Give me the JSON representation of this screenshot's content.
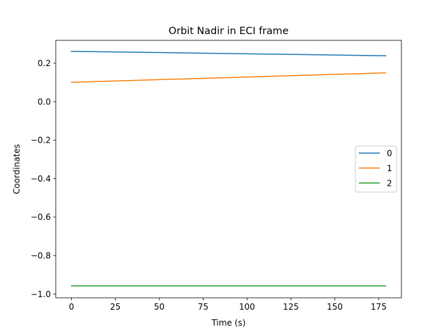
{
  "chart_data": {
    "type": "line",
    "title": "Orbit Nadir in ECI frame",
    "xlabel": "Time (s)",
    "ylabel": "Coordinates",
    "xlim": [
      -8.95,
      187.95
    ],
    "ylim": [
      -1.02,
      0.319
    ],
    "xticks": [
      0,
      25,
      50,
      75,
      100,
      125,
      150,
      175
    ],
    "xtick_labels": [
      "0",
      "25",
      "50",
      "75",
      "100",
      "125",
      "150",
      "175"
    ],
    "yticks": [
      0.2,
      0.0,
      -0.2,
      -0.4,
      -0.6,
      -0.8,
      -1.0
    ],
    "ytick_labels": [
      "0.2",
      "0.0",
      "−0.2",
      "−0.4",
      "−0.6",
      "−0.8",
      "−1.0"
    ],
    "grid": false,
    "legend_position": "center-right",
    "series": [
      {
        "name": "0",
        "color": "#1f77b4",
        "x": [
          0,
          179
        ],
        "values": [
          0.262,
          0.239
        ]
      },
      {
        "name": "1",
        "color": "#ff7f0e",
        "x": [
          0,
          179
        ],
        "values": [
          0.101,
          0.15
        ]
      },
      {
        "name": "2",
        "color": "#2ca02c",
        "x": [
          0,
          179
        ],
        "values": [
          -0.958,
          -0.958
        ]
      }
    ]
  }
}
